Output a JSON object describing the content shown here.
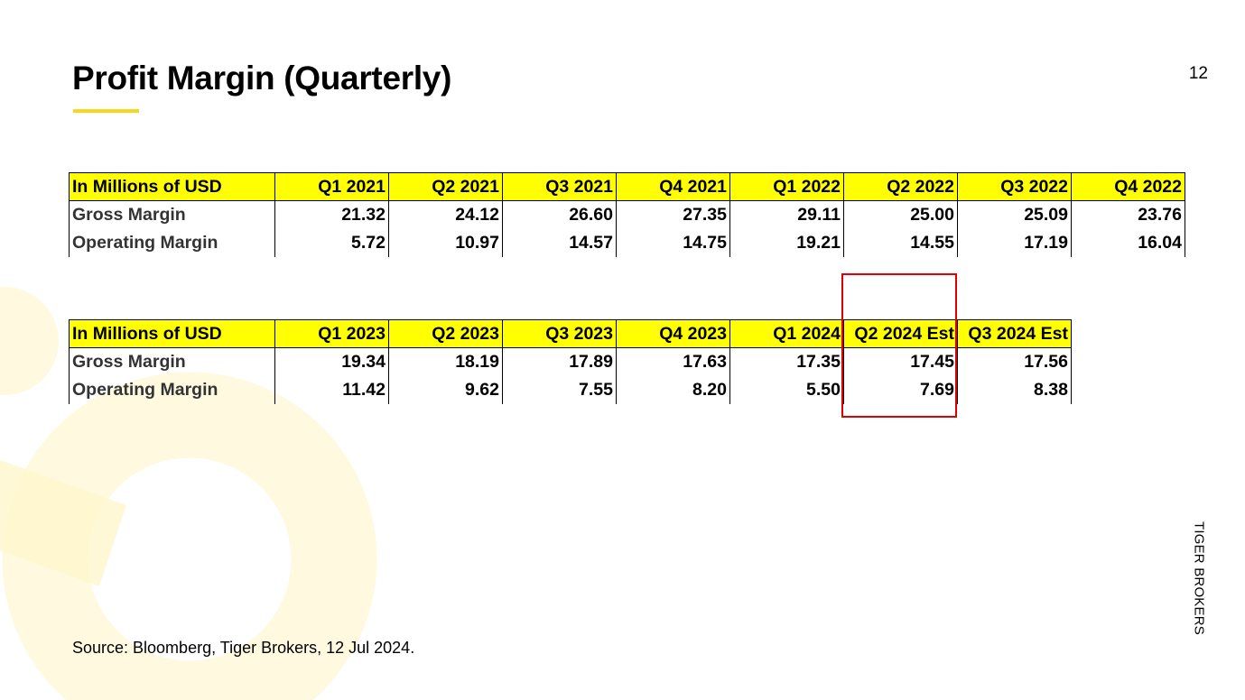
{
  "header": {
    "title": "Profit Margin (Quarterly)",
    "page_number": "12"
  },
  "brand": "TIGER BROKERS",
  "source": "Source: Bloomberg, Tiger Brokers, 12 Jul 2024.",
  "colors": {
    "header_fill": "#ffff00",
    "accent": "#f9d71c",
    "highlight_border": "#e00000"
  },
  "tables": [
    {
      "headers": [
        "In Millions of USD",
        "Q1 2021",
        "Q2 2021",
        "Q3 2021",
        "Q4 2021",
        "Q1 2022",
        "Q2 2022",
        "Q3 2022",
        "Q4 2022"
      ],
      "rows": [
        {
          "label": "Gross Margin",
          "values": [
            "21.32",
            "24.12",
            "26.60",
            "27.35",
            "29.11",
            "25.00",
            "25.09",
            "23.76"
          ]
        },
        {
          "label": "Operating Margin",
          "values": [
            "5.72",
            "10.97",
            "14.57",
            "14.75",
            "19.21",
            "14.55",
            "17.19",
            "16.04"
          ]
        }
      ]
    },
    {
      "headers": [
        "In Millions of USD",
        "Q1 2023",
        "Q2 2023",
        "Q3 2023",
        "Q4 2023",
        "Q1 2024",
        "Q2 2024 Est",
        "Q3 2024 Est"
      ],
      "rows": [
        {
          "label": "Gross Margin",
          "values": [
            "19.34",
            "18.19",
            "17.89",
            "17.63",
            "17.35",
            "17.45",
            "17.56"
          ]
        },
        {
          "label": "Operating Margin",
          "values": [
            "11.42",
            "9.62",
            "7.55",
            "8.20",
            "5.50",
            "7.69",
            "8.38"
          ]
        }
      ]
    }
  ],
  "highlight_column": "Q2 2024 Est"
}
